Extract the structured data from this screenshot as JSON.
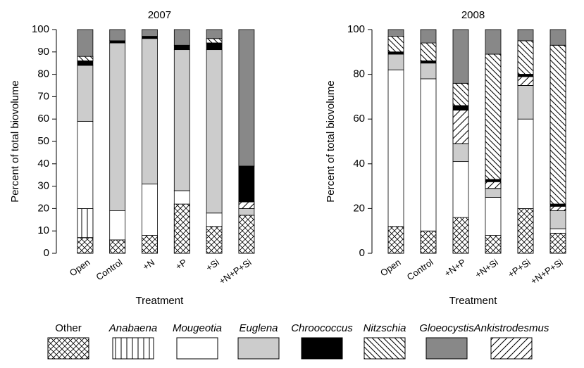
{
  "chart_data": [
    {
      "type": "bar",
      "title": "2007",
      "xlabel": "Treatment",
      "ylabel": "Percent of total biovolume",
      "categories": [
        "Open",
        "Control",
        "+N",
        "+P",
        "+Si",
        "+N+P+Si"
      ],
      "ylim": [
        0,
        100
      ],
      "yticks": [
        0,
        10,
        20,
        30,
        40,
        50,
        60,
        70,
        80,
        90,
        100
      ],
      "stacked": true,
      "series": [
        {
          "name": "Other",
          "color": "#ffffff",
          "values": [
            7,
            6,
            8,
            22,
            12,
            17
          ]
        },
        {
          "name": "Anabaena",
          "color": "#ffffff",
          "values": [
            13,
            0,
            0,
            0,
            0,
            0
          ]
        },
        {
          "name": "Mougeotia",
          "color": "#ffffff",
          "values": [
            39,
            13,
            23,
            6,
            6,
            0
          ]
        },
        {
          "name": "Euglena",
          "color": "#cccccc",
          "values": [
            25,
            75,
            65,
            63,
            73,
            3
          ]
        },
        {
          "name": "Chroococcus",
          "color": "#000000",
          "values": [
            2,
            1,
            1,
            2,
            3,
            16
          ]
        },
        {
          "name": "Nitzschia",
          "color": "#ffffff",
          "values": [
            2,
            0,
            0,
            0,
            2,
            0
          ]
        },
        {
          "name": "Gloeocystis",
          "color": "#888888",
          "values": [
            12,
            5,
            3,
            7,
            4,
            61
          ]
        },
        {
          "name": "Ankistrodesmus",
          "color": "#ffffff",
          "values": [
            0,
            0,
            0,
            0,
            0,
            3
          ]
        }
      ]
    },
    {
      "type": "bar",
      "title": "2008",
      "xlabel": "Treatment",
      "ylabel": "Percent of total biovolume",
      "categories": [
        "Open",
        "Control",
        "+N+P",
        "+N+Si",
        "+P+Si",
        "+N+P+Si"
      ],
      "ylim": [
        0,
        100
      ],
      "yticks": [
        0,
        20,
        40,
        60,
        80,
        100
      ],
      "stacked": true,
      "series": [
        {
          "color": "#ffffff",
          "values": [
            12,
            10,
            16,
            8,
            20,
            9
          ]
        },
        {
          "color": "#ffffff",
          "values": [
            0,
            0,
            0,
            0,
            0,
            0
          ]
        },
        {
          "color": "#ffffff",
          "values": [
            70,
            68,
            25,
            17,
            40,
            2
          ]
        },
        {
          "color": "#cccccc",
          "values": [
            7,
            7,
            8,
            4,
            15,
            8
          ]
        },
        {
          "color": "#000000",
          "values": [
            1,
            1,
            2,
            1,
            1,
            1
          ]
        },
        {
          "color": "#ffffff",
          "values": [
            7,
            8,
            10,
            56,
            15,
            71
          ]
        },
        {
          "color": "#888888",
          "values": [
            3,
            6,
            24,
            11,
            5,
            7
          ]
        },
        {
          "color": "#ffffff",
          "values": [
            0,
            0,
            15,
            3,
            4,
            2
          ]
        }
      ]
    }
  ]
}
